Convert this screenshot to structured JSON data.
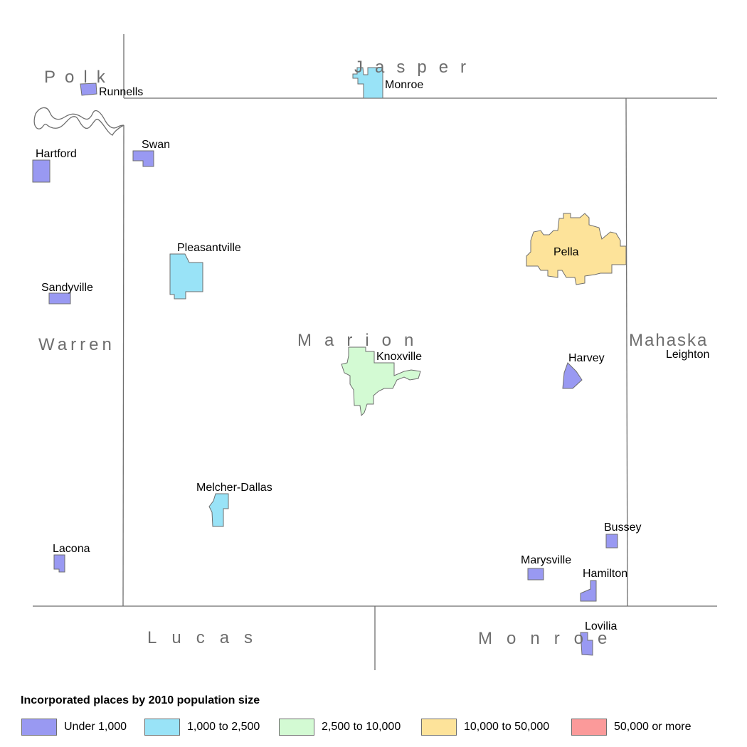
{
  "map": {
    "counties": {
      "polk": "Polk",
      "jasper": "Jasper",
      "warren": "Warren",
      "marion": "Marion",
      "mahaska": "Mahaska",
      "lucas": "Lucas",
      "monroe": "Monroe"
    },
    "places": {
      "runnells": "Runnells",
      "monroe": "Monroe",
      "hartford": "Hartford",
      "swan": "Swan",
      "pleasantville": "Pleasantville",
      "sandyville": "Sandyville",
      "pella": "Pella",
      "knoxville": "Knoxville",
      "harvey": "Harvey",
      "leighton": "Leighton",
      "melcher_dallas": "Melcher-Dallas",
      "lacona": "Lacona",
      "bussey": "Bussey",
      "marysville": "Marysville",
      "hamilton": "Hamilton",
      "lovilia": "Lovilia"
    },
    "colors": {
      "under_1000": "#9999f2",
      "1000_2500": "#99e3f7",
      "2500_10000": "#d3fad3",
      "10000_50000": "#fde39a",
      "50000_plus": "#fb9a9a",
      "boundary": "#6e6e6e"
    }
  },
  "legend": {
    "title": "Incorporated places by 2010 population size",
    "items": [
      {
        "label": "Under 1,000",
        "color": "#9999f2"
      },
      {
        "label": "1,000 to 2,500",
        "color": "#99e3f7"
      },
      {
        "label": "2,500 to 10,000",
        "color": "#d3fad3"
      },
      {
        "label": "10,000 to 50,000",
        "color": "#fde39a"
      },
      {
        "label": "50,000 or more",
        "color": "#fb9a9a"
      }
    ]
  }
}
